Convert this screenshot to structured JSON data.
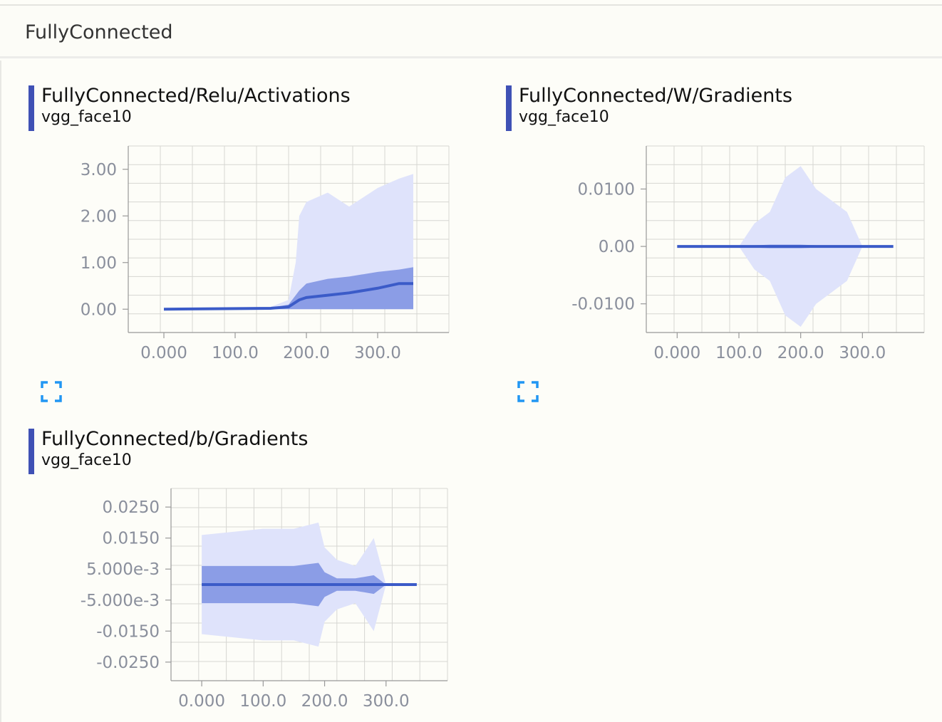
{
  "group": {
    "title": "FullyConnected"
  },
  "colors": {
    "accent": "#3f51b5",
    "series": "#3b5bc8",
    "band_outer": "#dfe3fb",
    "band_mid": "#8b9de6",
    "grid": "#c8c8c8",
    "tick_label": "#8a8f9c"
  },
  "icons": {
    "expand": "fullscreen-expand-icon"
  },
  "cards": [
    {
      "title": "FullyConnected/Relu/Activations",
      "run": "vgg_face10",
      "chart_data": {
        "type": "area",
        "xticks": [
          "0.000",
          "100.0",
          "200.0",
          "300.0"
        ],
        "yticks": [
          "3.00",
          "2.00",
          "1.00",
          "0.00"
        ],
        "xlim": [
          -50,
          400
        ],
        "ylim": [
          -0.5,
          3.5
        ],
        "grid": true,
        "x": [
          0,
          150,
          175,
          185,
          190,
          200,
          230,
          260,
          300,
          330,
          350
        ],
        "median": [
          0,
          0.02,
          0.05,
          0.15,
          0.2,
          0.25,
          0.3,
          0.35,
          0.45,
          0.55,
          0.55
        ],
        "p75": [
          0,
          0.03,
          0.1,
          0.3,
          0.4,
          0.55,
          0.65,
          0.7,
          0.8,
          0.85,
          0.9
        ],
        "max": [
          0,
          0.05,
          0.2,
          1.0,
          2.0,
          2.3,
          2.5,
          2.2,
          2.6,
          2.8,
          2.9
        ]
      }
    },
    {
      "title": "FullyConnected/W/Gradients",
      "run": "vgg_face10",
      "chart_data": {
        "type": "area",
        "xticks": [
          "0.000",
          "100.0",
          "200.0",
          "300.0"
        ],
        "yticks": [
          "0.0100",
          "0.00",
          "-0.0100"
        ],
        "xlim": [
          -50,
          400
        ],
        "ylim": [
          -0.015,
          0.0175
        ],
        "grid": true,
        "x": [
          0,
          100,
          125,
          150,
          175,
          200,
          225,
          250,
          275,
          300,
          350
        ],
        "median": [
          0,
          0,
          0,
          0,
          0,
          0,
          0,
          0,
          0,
          0,
          0
        ],
        "p75": [
          0,
          0,
          0.0002,
          0.0003,
          0.0003,
          0.0003,
          0.0002,
          0.0002,
          0.0001,
          0,
          0
        ],
        "max": [
          0,
          0,
          0.004,
          0.006,
          0.012,
          0.014,
          0.01,
          0.008,
          0.006,
          0,
          0
        ]
      }
    },
    {
      "title": "FullyConnected/b/Gradients",
      "run": "vgg_face10",
      "chart_data": {
        "type": "area",
        "xticks": [
          "0.000",
          "100.0",
          "200.0",
          "300.0"
        ],
        "yticks": [
          "0.0250",
          "0.0150",
          "5.000e-3",
          "-5.000e-3",
          "-0.0150",
          "-0.0250"
        ],
        "xlim": [
          -50,
          400
        ],
        "ylim": [
          -0.031,
          0.031
        ],
        "grid": true,
        "x": [
          0,
          50,
          100,
          150,
          190,
          200,
          220,
          250,
          280,
          300,
          350
        ],
        "median": [
          0,
          0,
          0,
          0,
          0,
          0,
          0,
          0,
          0,
          0,
          0
        ],
        "p75": [
          0.006,
          0.006,
          0.006,
          0.006,
          0.007,
          0.004,
          0.002,
          0.002,
          0.003,
          0,
          0
        ],
        "max": [
          0.016,
          0.017,
          0.018,
          0.018,
          0.02,
          0.012,
          0.008,
          0.006,
          0.015,
          0,
          0
        ]
      }
    }
  ]
}
